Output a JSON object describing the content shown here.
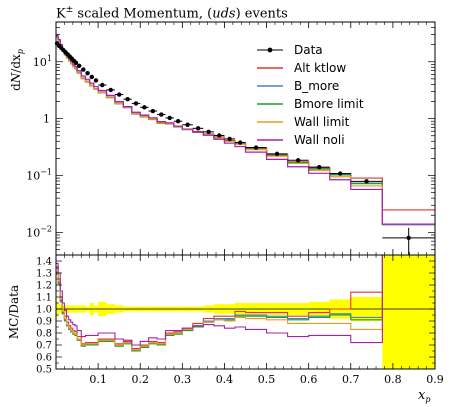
{
  "chart_data": {
    "type": "line",
    "title": {
      "pre": "K",
      "sup": "±",
      "mid": " scaled Momentum, (",
      "ital": "uds",
      "post": ") events"
    },
    "ylabel": "dN/dx_p",
    "ylabel_parts": {
      "d": "d",
      "N": "N",
      "slash": "/",
      "dx": "dx",
      "sub": "p"
    },
    "ratio_ylabel": "MC/Data",
    "xlabel": {
      "base": "x",
      "sub": "p"
    },
    "xlim": [
      0.0,
      0.9
    ],
    "ylim": [
      0.004,
      50
    ],
    "yscale": "log",
    "ratio_ylim": [
      0.5,
      1.45
    ],
    "x_tick_labels": [
      "0.1",
      "0.2",
      "0.3",
      "0.4",
      "0.5",
      "0.6",
      "0.7",
      "0.8",
      "0.9"
    ],
    "y_tick_labels": [
      {
        "v": 10,
        "base": "10",
        "exp": "1"
      },
      {
        "v": 1,
        "base": "1",
        "exp": ""
      },
      {
        "v": 0.1,
        "base": "10",
        "exp": "−1"
      },
      {
        "v": 0.01,
        "base": "10",
        "exp": "−2"
      }
    ],
    "ratio_tick_labels": [
      "0.5",
      "0.6",
      "0.7",
      "0.8",
      "0.9",
      "1.0",
      "1.1",
      "1.2",
      "1.3",
      "1.4"
    ],
    "legend_position": "top-right",
    "bin_edges": [
      0.0,
      0.005,
      0.01,
      0.015,
      0.02,
      0.025,
      0.03,
      0.035,
      0.04,
      0.045,
      0.05,
      0.06,
      0.07,
      0.08,
      0.09,
      0.1,
      0.12,
      0.14,
      0.16,
      0.18,
      0.2,
      0.22,
      0.24,
      0.26,
      0.28,
      0.3,
      0.325,
      0.35,
      0.375,
      0.4,
      0.425,
      0.45,
      0.5,
      0.55,
      0.6,
      0.65,
      0.7,
      0.775,
      0.9
    ],
    "data": {
      "name": "Data",
      "color": "#000000",
      "x": [
        0.0025,
        0.0075,
        0.0125,
        0.0175,
        0.0225,
        0.0275,
        0.0325,
        0.0375,
        0.0425,
        0.0475,
        0.055,
        0.065,
        0.075,
        0.085,
        0.095,
        0.11,
        0.13,
        0.15,
        0.17,
        0.19,
        0.21,
        0.23,
        0.25,
        0.27,
        0.29,
        0.3125,
        0.3375,
        0.3625,
        0.3875,
        0.4125,
        0.4375,
        0.475,
        0.525,
        0.575,
        0.625,
        0.675,
        0.7375,
        0.8375
      ],
      "y": [
        21,
        19,
        17.5,
        16,
        14.7,
        13.5,
        12.4,
        11.4,
        10.4,
        9.6,
        8.5,
        7.3,
        6.3,
        5.4,
        4.7,
        3.9,
        3.2,
        2.65,
        2.2,
        1.85,
        1.58,
        1.36,
        1.18,
        1.03,
        0.9,
        0.78,
        0.675,
        0.585,
        0.505,
        0.44,
        0.38,
        0.31,
        0.24,
        0.185,
        0.14,
        0.108,
        0.079,
        0.008
      ],
      "y_err": [
        0.6,
        0.5,
        0.5,
        0.4,
        0.4,
        0.35,
        0.3,
        0.3,
        0.25,
        0.25,
        0.2,
        0.18,
        0.15,
        0.13,
        0.12,
        0.09,
        0.07,
        0.06,
        0.05,
        0.04,
        0.035,
        0.03,
        0.026,
        0.022,
        0.02,
        0.017,
        0.015,
        0.013,
        0.011,
        0.01,
        0.009,
        0.007,
        0.006,
        0.005,
        0.004,
        0.0035,
        0.003,
        0.004
      ]
    },
    "series": [
      {
        "name": "Alt ktlow",
        "color": "#e3342f",
        "ratio": [
          1.34,
          1.25,
          1.1,
          1.0,
          0.94,
          0.89,
          0.86,
          0.84,
          0.82,
          0.81,
          0.77,
          0.71,
          0.72,
          0.72,
          0.72,
          0.75,
          0.75,
          0.71,
          0.73,
          0.67,
          0.7,
          0.73,
          0.72,
          0.8,
          0.81,
          0.84,
          0.88,
          0.92,
          0.94,
          0.94,
          0.98,
          0.97,
          0.97,
          0.94,
          0.97,
          1.0,
          1.14,
          3.1
        ]
      },
      {
        "name": "B_more",
        "color": "#4a7fd1",
        "ratio": [
          1.3,
          1.22,
          1.07,
          0.97,
          0.91,
          0.87,
          0.84,
          0.82,
          0.8,
          0.79,
          0.75,
          0.7,
          0.71,
          0.71,
          0.71,
          0.74,
          0.74,
          0.7,
          0.72,
          0.66,
          0.69,
          0.72,
          0.71,
          0.79,
          0.8,
          0.83,
          0.86,
          0.9,
          0.92,
          0.92,
          0.95,
          0.95,
          0.94,
          0.92,
          0.94,
          0.96,
          0.93,
          1.7
        ]
      },
      {
        "name": "Bmore limit",
        "color": "#1e9b30",
        "ratio": [
          1.29,
          1.21,
          1.06,
          0.96,
          0.9,
          0.86,
          0.83,
          0.81,
          0.79,
          0.78,
          0.74,
          0.69,
          0.7,
          0.7,
          0.7,
          0.73,
          0.73,
          0.69,
          0.71,
          0.65,
          0.68,
          0.71,
          0.7,
          0.78,
          0.79,
          0.82,
          0.85,
          0.89,
          0.91,
          0.91,
          0.94,
          0.94,
          0.93,
          0.91,
          0.93,
          0.95,
          0.91,
          1.75
        ]
      },
      {
        "name": "Wall limit",
        "color": "#f09a1d",
        "ratio": [
          1.31,
          1.23,
          1.08,
          0.98,
          0.92,
          0.87,
          0.84,
          0.82,
          0.8,
          0.79,
          0.75,
          0.7,
          0.71,
          0.71,
          0.71,
          0.74,
          0.74,
          0.7,
          0.72,
          0.66,
          0.69,
          0.72,
          0.71,
          0.79,
          0.8,
          0.83,
          0.86,
          0.89,
          0.91,
          0.9,
          0.93,
          0.92,
          0.91,
          0.88,
          0.88,
          0.88,
          0.83,
          1.75
        ]
      },
      {
        "name": "Wall noli",
        "color": "#a520b0",
        "ratio": [
          1.38,
          1.3,
          1.15,
          1.05,
          0.99,
          0.94,
          0.91,
          0.89,
          0.87,
          0.86,
          0.82,
          0.77,
          0.78,
          0.78,
          0.78,
          0.8,
          0.8,
          0.75,
          0.74,
          0.7,
          0.73,
          0.76,
          0.75,
          0.82,
          0.82,
          0.84,
          0.86,
          0.87,
          0.86,
          0.84,
          0.85,
          0.83,
          0.8,
          0.77,
          0.78,
          0.78,
          0.72,
          1.75
        ]
      }
    ],
    "ratio_band": {
      "color": "#ffff00",
      "half_width": [
        0.06,
        0.04,
        0.035,
        0.03,
        0.03,
        0.03,
        0.03,
        0.03,
        0.03,
        0.03,
        0.03,
        0.03,
        0.02,
        0.05,
        0.03,
        0.06,
        0.04,
        0.03,
        0.02,
        0.02,
        0.02,
        0.02,
        0.02,
        0.02,
        0.02,
        0.02,
        0.02,
        0.03,
        0.04,
        0.04,
        0.05,
        0.05,
        0.05,
        0.05,
        0.06,
        0.08,
        0.1,
        0.5
      ]
    }
  }
}
